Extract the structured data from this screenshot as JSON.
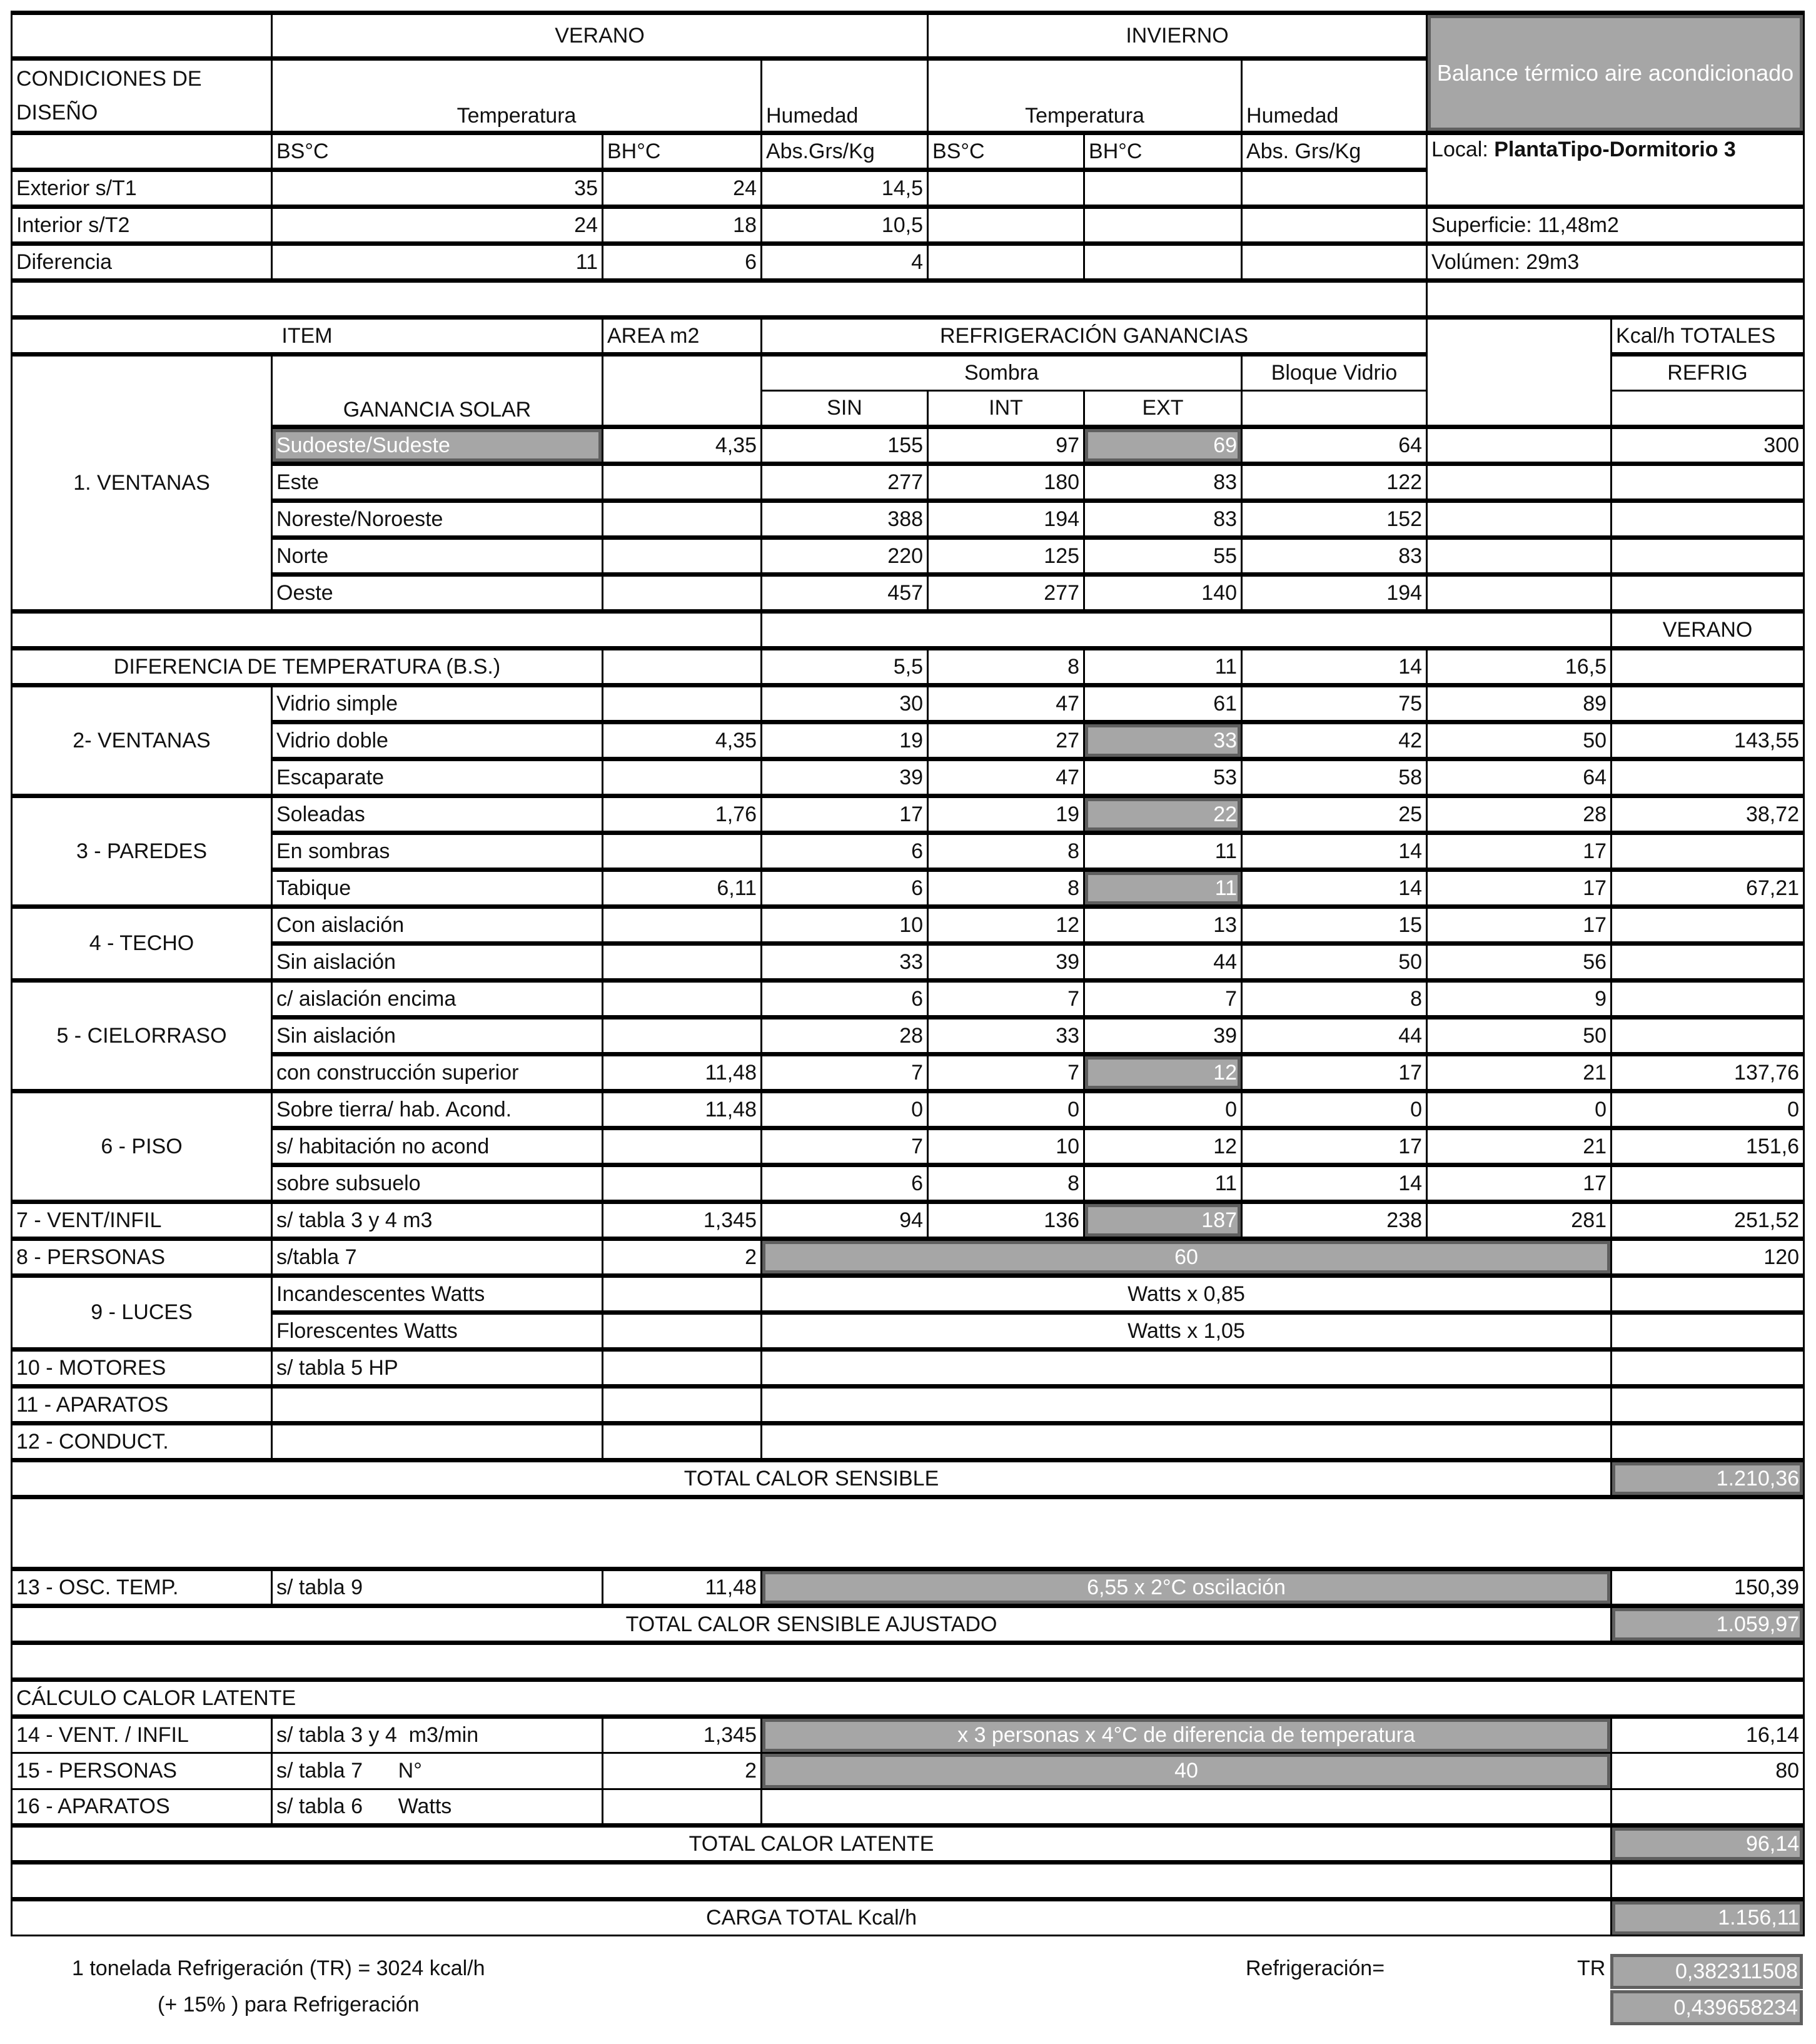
{
  "top": {
    "verano": "VERANO",
    "invierno": "INVIERNO",
    "title": "Balance térmico aire acondicionado",
    "condiciones": "CONDICIONES DE DISEÑO",
    "temperatura": "Temperatura",
    "humedad": "Humedad",
    "bs": "BS°C",
    "bh": "BH°C",
    "abs_verano": "Abs.Grs/Kg",
    "abs_invierno": "Abs. Grs/Kg",
    "local_label": "Local: ",
    "local_value": "PlantaTipo-Dormitorio 3",
    "superficie": "Superficie: 11,48m2",
    "volumen": "Volúmen: 29m3"
  },
  "design": [
    {
      "label": "Exterior s/T1",
      "bs": "35",
      "bh": "24",
      "abs": "14,5"
    },
    {
      "label": "Interior s/T2",
      "bs": "24",
      "bh": "18",
      "abs": "10,5"
    },
    {
      "label": "Diferencia",
      "bs": "11",
      "bh": "6",
      "abs": "4"
    }
  ],
  "gains": {
    "item": "ITEM",
    "area": "AREA m2",
    "refrig_ganancias": "REFRIGERACIÓN GANANCIAS",
    "kcal_totales": "Kcal/h TOTALES",
    "sombra": "Sombra",
    "bloque_vidrio": "Bloque Vidrio",
    "refrig": "REFRIG",
    "ganancia_solar": "GANANCIA SOLAR",
    "sin": "SIN",
    "int": "INT",
    "ext": "EXT",
    "ventanas": "1. VENTANAS",
    "orientations": [
      {
        "name": "Sudoeste/Sudeste",
        "area": "4,35",
        "sin": "155",
        "int": "97",
        "ext": "69",
        "bv": "64",
        "total": "300"
      },
      {
        "name": "Este",
        "area": "",
        "sin": "277",
        "int": "180",
        "ext": "83",
        "bv": "122",
        "total": ""
      },
      {
        "name": "Noreste/Noroeste",
        "area": "",
        "sin": "388",
        "int": "194",
        "ext": "83",
        "bv": "152",
        "total": ""
      },
      {
        "name": "Norte",
        "area": "",
        "sin": "220",
        "int": "125",
        "ext": "55",
        "bv": "83",
        "total": ""
      },
      {
        "name": "Oeste",
        "area": "",
        "sin": "457",
        "int": "277",
        "ext": "140",
        "bv": "194",
        "total": ""
      }
    ]
  },
  "dt": {
    "season": "VERANO",
    "label": "DIFERENCIA DE TEMPERATURA (B.S.)",
    "values": [
      "5,5",
      "8",
      "11",
      "14",
      "16,5"
    ]
  },
  "sections": [
    {
      "label": "2- VENTANAS",
      "rows": [
        {
          "name": "Vidrio simple",
          "area": "",
          "v": [
            "30",
            "47",
            "61",
            "75",
            "89"
          ],
          "total": ""
        },
        {
          "name": "Vidrio doble",
          "area": "4,35",
          "v": [
            "19",
            "27",
            "33",
            "42",
            "50"
          ],
          "total": "143,55"
        },
        {
          "name": "Escaparate",
          "area": "",
          "v": [
            "39",
            "47",
            "53",
            "58",
            "64"
          ],
          "total": ""
        }
      ]
    },
    {
      "label": "3 - PAREDES",
      "rows": [
        {
          "name": "Soleadas",
          "area": "1,76",
          "v": [
            "17",
            "19",
            "22",
            "25",
            "28"
          ],
          "total": "38,72"
        },
        {
          "name": "En sombras",
          "area": "",
          "v": [
            "6",
            "8",
            "11",
            "14",
            "17"
          ],
          "total": ""
        },
        {
          "name": "Tabique",
          "area": "6,11",
          "v": [
            "6",
            "8",
            "11",
            "14",
            "17"
          ],
          "total": "67,21"
        }
      ]
    },
    {
      "label": "4 - TECHO",
      "rows": [
        {
          "name": "Con aislación",
          "area": "",
          "v": [
            "10",
            "12",
            "13",
            "15",
            "17"
          ],
          "total": ""
        },
        {
          "name": "Sin aislación",
          "area": "",
          "v": [
            "33",
            "39",
            "44",
            "50",
            "56"
          ],
          "total": ""
        }
      ]
    },
    {
      "label": "5 - CIELORRASO",
      "rows": [
        {
          "name": "c/ aislación encima",
          "area": "",
          "v": [
            "6",
            "7",
            "7",
            "8",
            "9"
          ],
          "total": ""
        },
        {
          "name": "Sin aislación",
          "area": "",
          "v": [
            "28",
            "33",
            "39",
            "44",
            "50"
          ],
          "total": ""
        },
        {
          "name": "con construcción superior",
          "area": "11,48",
          "v": [
            "7",
            "7",
            "12",
            "17",
            "21"
          ],
          "total": "137,76"
        }
      ]
    },
    {
      "label": "6 - PISO",
      "rows": [
        {
          "name": "Sobre tierra/ hab. Acond.",
          "area": "11,48",
          "v": [
            "0",
            "0",
            "0",
            "0",
            "0"
          ],
          "total": "0"
        },
        {
          "name": "s/ habitación no acond",
          "area": "",
          "v": [
            "7",
            "10",
            "12",
            "17",
            "21"
          ],
          "total": "151,6"
        },
        {
          "name": "sobre subsuelo",
          "area": "",
          "v": [
            "6",
            "8",
            "11",
            "14",
            "17"
          ],
          "total": ""
        }
      ]
    }
  ],
  "vent": {
    "label": "7 - VENT/INFIL",
    "ref": "s/ tabla 3 y 4 m3",
    "area": "1,345",
    "v": [
      "94",
      "136",
      "187",
      "238",
      "281"
    ],
    "total": "251,52"
  },
  "personas": {
    "label": "8 - PERSONAS",
    "ref": "s/tabla 7",
    "qty": "2",
    "factor": "60",
    "total": "120"
  },
  "luces": {
    "label": "9 - LUCES",
    "incand": "Incandescentes Watts",
    "incand_factor": "Watts x 0,85",
    "fluor": "Florescentes Watts",
    "fluor_factor": "Watts x 1,05"
  },
  "motores": {
    "label": "10 - MOTORES",
    "ref": "s/ tabla 5 HP"
  },
  "aparatos": {
    "label": "11 - APARATOS"
  },
  "conduct": {
    "label": "12 - CONDUCT."
  },
  "total_sensible": {
    "label": "TOTAL CALOR SENSIBLE",
    "value": "1.210,36"
  },
  "osc": {
    "label": "13 - OSC. TEMP.",
    "ref": "s/ tabla 9",
    "area": "11,48",
    "factor": "6,55 x 2°C oscilación",
    "total": "150,39"
  },
  "total_ajustado": {
    "label": "TOTAL CALOR SENSIBLE AJUSTADO",
    "value": "1.059,97"
  },
  "latente": {
    "title": "CÁLCULO CALOR LATENTE",
    "vent": {
      "label": "14 - VENT. / INFIL",
      "ref": "s/ tabla 3 y 4  m3/min",
      "qty": "1,345",
      "factor": "x 3 personas x 4°C de diferencia de temperatura",
      "total": "16,14"
    },
    "personas": {
      "label": "15 - PERSONAS",
      "ref": "s/ tabla 7      N°",
      "qty": "2",
      "factor": "40",
      "total": "80"
    },
    "aparatos": {
      "label": "16 - APARATOS",
      "ref": "s/ tabla 6      Watts"
    }
  },
  "total_latente": {
    "label": "TOTAL CALOR LATENTE",
    "value": "96,14"
  },
  "carga_total": {
    "label": "CARGA TOTAL Kcal/h",
    "value": "1.156,11"
  },
  "footer": {
    "tonelada": "1 tonelada Refrigeración (TR) = 3024 kcal/h",
    "plus15": "(+ 15% ) para Refrigeración",
    "refrigeracion": "Refrigeración=",
    "tr": "TR",
    "tr_value": "0,382311508",
    "tr_plus15": "0,439658234"
  }
}
